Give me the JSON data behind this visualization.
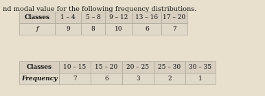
{
  "title": "nd modal value for the following frequency distributions.",
  "table1": {
    "headers": [
      "Classes",
      "1 – 4",
      "5 – 8",
      "9 – 12",
      "13 – 16",
      "17 – 20"
    ],
    "row_label": "f",
    "values": [
      "9",
      "8",
      "10",
      "6",
      "7"
    ]
  },
  "table2": {
    "headers": [
      "Classes",
      "10 – 15",
      "15 – 20",
      "20 – 25",
      "25 – 30",
      "30 – 35"
    ],
    "row_label": "Frequency",
    "values": [
      "7",
      "6",
      "3",
      "2",
      "1"
    ]
  },
  "bg_color": "#e8e0cc",
  "header_bg": "#d8cfc0",
  "row_bg": "#e0d8c8",
  "text_color": "#111111",
  "title_fontsize": 7.0,
  "cell_fontsize": 6.5
}
